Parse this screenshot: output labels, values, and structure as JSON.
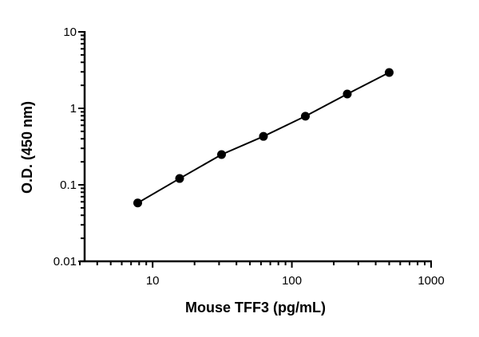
{
  "chart_data": {
    "type": "line",
    "title": "",
    "xlabel": "Mouse TFF3 (pg/mL)",
    "ylabel": "O.D. (450 nm)",
    "xscale": "log",
    "yscale": "log",
    "xlim": [
      3,
      1000
    ],
    "ylim": [
      0.01,
      10
    ],
    "x_ticks": [
      {
        "value": 10,
        "label": "10"
      },
      {
        "value": 100,
        "label": "100"
      },
      {
        "value": 1000,
        "label": "1000"
      }
    ],
    "y_ticks": [
      {
        "value": 0.01,
        "label": "0.01"
      },
      {
        "value": 0.1,
        "label": "0.1"
      },
      {
        "value": 1,
        "label": "1"
      },
      {
        "value": 10,
        "label": "10"
      }
    ],
    "grid": false,
    "series": [
      {
        "x": [
          7.8125,
          15.625,
          31.25,
          62.5,
          125,
          250,
          500
        ],
        "y": [
          0.058,
          0.121,
          0.249,
          0.43,
          0.79,
          1.54,
          2.94
        ],
        "color": "#000000",
        "marker": "circle",
        "line": true
      }
    ]
  }
}
